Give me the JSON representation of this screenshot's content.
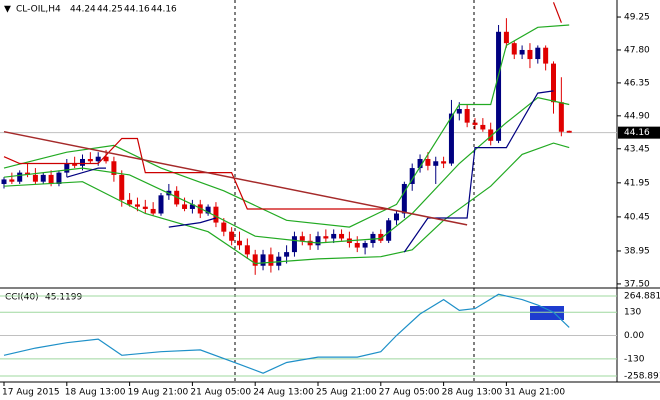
{
  "chart_data": [
    {
      "type": "candlestick",
      "title": "CL-OIL,H4",
      "ohlc_header": [
        44.24,
        44.25,
        44.16,
        44.16
      ],
      "last_price": 44.16,
      "up_color": "#000080",
      "down_color": "#e00000",
      "categories": [
        "17 Aug 2015",
        null,
        null,
        null,
        null,
        null,
        null,
        null,
        "18 Aug 13:00",
        null,
        null,
        null,
        null,
        null,
        null,
        null,
        "19 Aug 21:00",
        null,
        null,
        null,
        null,
        null,
        null,
        null,
        "21 Aug 05:00",
        null,
        null,
        null,
        null,
        null,
        null,
        null,
        "24 Aug 13:00",
        null,
        null,
        null,
        null,
        null,
        null,
        null,
        "25 Aug 21:00",
        null,
        null,
        null,
        null,
        null,
        null,
        null,
        "27 Aug 05:00",
        null,
        null,
        null,
        null,
        null,
        null,
        null,
        "28 Aug 13:00",
        null,
        null,
        null,
        null,
        null,
        null,
        null,
        "31 Aug 21:00",
        null,
        null,
        null,
        null,
        null,
        null,
        null,
        null
      ],
      "open": [
        41.9,
        42.1,
        42.0,
        42.4,
        42.3,
        42.0,
        42.3,
        41.9,
        42.4,
        42.8,
        42.7,
        43.0,
        42.9,
        43.1,
        42.9,
        42.3,
        41.2,
        41.0,
        40.9,
        40.8,
        40.6,
        41.4,
        41.6,
        41.0,
        40.8,
        41.0,
        40.6,
        40.9,
        40.2,
        39.8,
        39.4,
        39.2,
        38.8,
        38.3,
        38.8,
        38.3,
        38.7,
        38.9,
        39.6,
        39.4,
        39.2,
        39.6,
        39.5,
        39.7,
        39.5,
        39.3,
        39.1,
        39.3,
        39.7,
        39.4,
        40.3,
        40.6,
        41.9,
        42.6,
        43.0,
        42.7,
        42.9,
        42.8,
        45.0,
        45.2,
        44.6,
        44.5,
        44.3,
        43.8,
        48.6,
        48.1,
        47.6,
        47.8,
        47.4,
        47.9,
        47.2,
        45.5,
        44.24
      ],
      "high": [
        42.2,
        42.4,
        42.5,
        42.8,
        42.6,
        42.4,
        42.5,
        42.5,
        43.0,
        43.1,
        43.2,
        43.3,
        43.3,
        43.4,
        43.1,
        42.5,
        41.5,
        41.3,
        41.2,
        41.1,
        41.5,
        41.9,
        41.8,
        41.3,
        41.2,
        41.2,
        41.0,
        41.1,
        40.4,
        40.0,
        39.8,
        39.5,
        39.0,
        39.0,
        39.1,
        38.9,
        39.2,
        39.8,
        39.8,
        39.7,
        39.8,
        39.9,
        39.9,
        39.9,
        39.8,
        39.6,
        39.4,
        39.8,
        39.9,
        40.4,
        40.7,
        42.0,
        42.8,
        43.2,
        43.3,
        43.1,
        43.1,
        45.6,
        45.5,
        45.4,
        44.8,
        44.8,
        44.6,
        48.9,
        49.2,
        48.2,
        48.0,
        48.1,
        48.0,
        48.0,
        47.3,
        46.6,
        44.25
      ],
      "low": [
        41.7,
        41.9,
        41.9,
        42.2,
        41.9,
        41.9,
        41.8,
        41.8,
        42.2,
        42.6,
        42.5,
        42.8,
        42.7,
        42.8,
        42.0,
        40.9,
        40.9,
        40.7,
        40.6,
        40.5,
        40.5,
        41.2,
        40.9,
        40.7,
        40.6,
        40.4,
        40.5,
        40.0,
        39.6,
        39.2,
        39.0,
        38.6,
        37.9,
        38.1,
        38.0,
        38.1,
        38.4,
        38.7,
        39.2,
        39.0,
        39.0,
        39.3,
        39.3,
        39.4,
        39.1,
        38.9,
        38.8,
        39.1,
        39.3,
        39.3,
        40.1,
        40.4,
        41.6,
        42.4,
        42.5,
        41.9,
        42.6,
        42.7,
        44.7,
        44.4,
        44.3,
        44.2,
        43.6,
        43.7,
        47.9,
        47.4,
        47.4,
        47.0,
        47.2,
        46.9,
        45.0,
        44.0,
        44.16
      ],
      "close": [
        42.1,
        42.0,
        42.4,
        42.3,
        42.0,
        42.3,
        41.9,
        42.4,
        42.8,
        42.7,
        43.0,
        42.9,
        43.1,
        42.9,
        42.3,
        41.2,
        41.0,
        40.9,
        40.8,
        40.6,
        41.4,
        41.6,
        41.0,
        40.8,
        41.0,
        40.6,
        40.9,
        40.2,
        39.8,
        39.4,
        39.2,
        38.8,
        38.3,
        38.8,
        38.3,
        38.7,
        38.9,
        39.6,
        39.4,
        39.2,
        39.6,
        39.5,
        39.7,
        39.5,
        39.3,
        39.1,
        39.3,
        39.7,
        39.4,
        40.3,
        40.6,
        41.9,
        42.6,
        43.0,
        42.7,
        42.9,
        42.8,
        45.0,
        45.2,
        44.6,
        44.5,
        44.3,
        43.8,
        48.6,
        48.1,
        47.6,
        47.8,
        47.4,
        47.9,
        47.2,
        45.5,
        44.2,
        44.16
      ],
      "ylim": [
        37.32,
        50.0
      ],
      "yticks": [
        49.25,
        {
          "value": 47.8,
          "label": "47.80"
        },
        46.35,
        {
          "value": 44.9,
          "label": "44.90"
        },
        43.45,
        41.95,
        40.45,
        38.95,
        {
          "value": 37.5,
          "label": "37.50"
        }
      ],
      "series": [
        {
          "color": "#22aa22",
          "x": [
            0,
            8,
            14,
            20,
            28,
            36,
            44,
            50,
            54,
            58,
            62,
            64,
            68,
            72
          ],
          "values": [
            42.6,
            43.3,
            43.6,
            42.6,
            41.6,
            40.3,
            40.0,
            41.0,
            43.2,
            45.4,
            45.4,
            48.0,
            48.8,
            48.9
          ]
        },
        {
          "color": "#22aa22",
          "x": [
            0,
            10,
            16,
            24,
            32,
            40,
            48,
            52,
            58,
            64,
            68,
            72
          ],
          "values": [
            42.2,
            42.6,
            42.3,
            41.0,
            39.6,
            39.3,
            39.5,
            40.6,
            42.8,
            44.6,
            45.7,
            45.4
          ]
        },
        {
          "color": "#22aa22",
          "x": [
            0,
            10,
            18,
            26,
            32,
            40,
            48,
            52,
            56,
            62,
            66,
            70,
            72
          ],
          "values": [
            41.8,
            42.0,
            40.6,
            39.8,
            38.4,
            38.6,
            38.7,
            39.0,
            40.3,
            41.8,
            43.2,
            43.7,
            43.5
          ]
        },
        {
          "color": "#000080",
          "x": [
            8,
            12,
            13,
            null,
            21,
            25,
            27,
            null,
            51,
            54,
            59,
            60,
            64,
            68,
            70
          ],
          "values": [
            42.2,
            42.6,
            42.6,
            null,
            40.0,
            40.2,
            40.4,
            null,
            38.9,
            40.4,
            40.4,
            43.5,
            43.5,
            45.9,
            46.0
          ]
        },
        {
          "color": "#cc0000",
          "x": [
            0,
            2,
            12,
            15,
            17,
            18,
            29,
            31,
            49,
            null,
            70,
            71
          ],
          "values": [
            43.1,
            42.8,
            42.8,
            43.9,
            43.9,
            42.4,
            42.4,
            40.8,
            40.8,
            null,
            49.9,
            49.0
          ]
        },
        {
          "color": "#a52a2a",
          "x": [
            0,
            59
          ],
          "values": [
            44.2,
            40.1
          ]
        }
      ]
    },
    {
      "type": "line",
      "title": "CCI(40)",
      "current": 45.1199,
      "color": "#1e90c8",
      "x": [
        0,
        4,
        8,
        12,
        15,
        20,
        25,
        30,
        33,
        36,
        40,
        45,
        48,
        50,
        53,
        56,
        58,
        60,
        63,
        66,
        68,
        70,
        72
      ],
      "values": [
        -110,
        -70,
        -40,
        -20,
        -110,
        -90,
        -80,
        -160,
        -210,
        -150,
        -120,
        -120,
        -90,
        0,
        120,
        200,
        140,
        150,
        230,
        200,
        170,
        130,
        45.1199
      ],
      "ylim": [
        -258.891,
        264.8817
      ],
      "yticks": [
        264.8817,
        130,
        {
          "value": 0,
          "label": "0.00"
        },
        -130,
        -258.891
      ]
    }
  ]
}
